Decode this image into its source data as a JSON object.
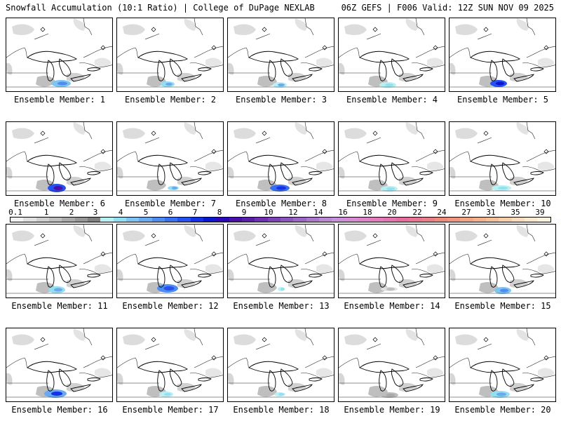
{
  "header": {
    "left": "Snowfall Accumulation (10:1 Ratio) | College of DuPage NEXLAB",
    "right": "06Z GEFS | F006 Valid: 12Z SUN NOV 09 2025"
  },
  "colorbar": {
    "ticks": [
      "0.1",
      "1",
      "2",
      "3",
      "4",
      "5",
      "6",
      "7",
      "8",
      "9",
      "10",
      "12",
      "14",
      "16",
      "18",
      "20",
      "22",
      "24",
      "27",
      "31",
      "35",
      "39"
    ],
    "colors": [
      "#f2f2f2",
      "#e0e0e0",
      "#cfcfcf",
      "#bdbdbd",
      "#a9a9a9",
      "#969696",
      "#7f7f7f",
      "#b9f0f4",
      "#93dff2",
      "#7ec4f2",
      "#6aa8ef",
      "#4f8cf0",
      "#3a6ff0",
      "#2650ef",
      "#1431e8",
      "#0a17cf",
      "#2a08b8",
      "#4a10a8",
      "#5a1fa8",
      "#6e30b0",
      "#7c42b6",
      "#8a55bd",
      "#9a66c4",
      "#aa78cb",
      "#ba88d2",
      "#c890d6",
      "#d48cd0",
      "#dc84c8",
      "#e27cbc",
      "#e474ae",
      "#e66ca0",
      "#e87494",
      "#ea7e88",
      "#ec8a80",
      "#ee9682",
      "#f0a488",
      "#f2b290",
      "#f4c09c",
      "#f6ceaa",
      "#f8dcbb",
      "#fae8cc",
      "#fcf2de"
    ]
  },
  "panels": [
    {
      "label": "Ensemble Member: 1",
      "blob": "#7ec4f2",
      "core": "#4f8cf0",
      "cx": 78,
      "cy": 93,
      "rx": 14,
      "ry": 5
    },
    {
      "label": "Ensemble Member: 2",
      "blob": "#93dff2",
      "core": "#6aa8ef",
      "cx": 72,
      "cy": 94,
      "rx": 10,
      "ry": 4
    },
    {
      "label": "Ensemble Member: 3",
      "blob": "#b9f0f4",
      "core": "#6aa8ef",
      "cx": 74,
      "cy": 95,
      "rx": 10,
      "ry": 4
    },
    {
      "label": "Ensemble Member: 4",
      "blob": "#b9f0f4",
      "core": "#93dff2",
      "cx": 70,
      "cy": 95,
      "rx": 12,
      "ry": 4
    },
    {
      "label": "Ensemble Member: 5",
      "blob": "#2650ef",
      "core": "#0a17cf",
      "cx": 70,
      "cy": 93,
      "rx": 12,
      "ry": 5
    },
    {
      "label": "Ensemble Member: 6",
      "blob": "#2650ef",
      "core": "#4a10a8",
      "cx": 72,
      "cy": 94,
      "rx": 13,
      "ry": 6
    },
    {
      "label": "Ensemble Member: 7",
      "blob": "#93dff2",
      "core": "#6aa8ef",
      "cx": 80,
      "cy": 94,
      "rx": 8,
      "ry": 3
    },
    {
      "label": "Ensemble Member: 8",
      "blob": "#3a6ff0",
      "core": "#1431e8",
      "cx": 74,
      "cy": 94,
      "rx": 14,
      "ry": 5
    },
    {
      "label": "Ensemble Member: 9",
      "blob": "#b9f0f4",
      "core": "#93dff2",
      "cx": 72,
      "cy": 95,
      "rx": 12,
      "ry": 4
    },
    {
      "label": "Ensemble Member: 10",
      "blob": "#b9f0f4",
      "core": "#93dff2",
      "cx": 74,
      "cy": 94,
      "rx": 14,
      "ry": 4
    },
    {
      "label": "Ensemble Member: 11",
      "blob": "#93dff2",
      "core": "#6aa8ef",
      "cx": 72,
      "cy": 93,
      "rx": 12,
      "ry": 5
    },
    {
      "label": "Ensemble Member: 12",
      "blob": "#4f8cf0",
      "core": "#2650ef",
      "cx": 72,
      "cy": 91,
      "rx": 15,
      "ry": 6
    },
    {
      "label": "Ensemble Member: 13",
      "blob": "#b9f0f4",
      "core": "#93dff2",
      "cx": 76,
      "cy": 92,
      "rx": 5,
      "ry": 3
    },
    {
      "label": "Ensemble Member: 14",
      "blob": "#e0e0e0",
      "core": "#bdbdbd",
      "cx": 72,
      "cy": 92,
      "rx": 12,
      "ry": 3
    },
    {
      "label": "Ensemble Member: 15",
      "blob": "#7ec4f2",
      "core": "#4f8cf0",
      "cx": 76,
      "cy": 94,
      "rx": 12,
      "ry": 5
    },
    {
      "label": "Ensemble Member: 16",
      "blob": "#6aa8ef",
      "core": "#1431e8",
      "cx": 70,
      "cy": 93,
      "rx": 16,
      "ry": 6
    },
    {
      "label": "Ensemble Member: 17",
      "blob": "#b9f0f4",
      "core": "#93dff2",
      "cx": 70,
      "cy": 94,
      "rx": 10,
      "ry": 4
    },
    {
      "label": "Ensemble Member: 18",
      "blob": "#b9f0f4",
      "core": "#93dff2",
      "cx": 74,
      "cy": 94,
      "rx": 8,
      "ry": 3
    },
    {
      "label": "Ensemble Member: 19",
      "blob": "#bdbdbd",
      "core": "#a9a9a9",
      "cx": 72,
      "cy": 95,
      "rx": 13,
      "ry": 4
    },
    {
      "label": "Ensemble Member: 20",
      "blob": "#93dff2",
      "core": "#6aa8ef",
      "cx": 72,
      "cy": 94,
      "rx": 14,
      "ry": 5
    }
  ]
}
